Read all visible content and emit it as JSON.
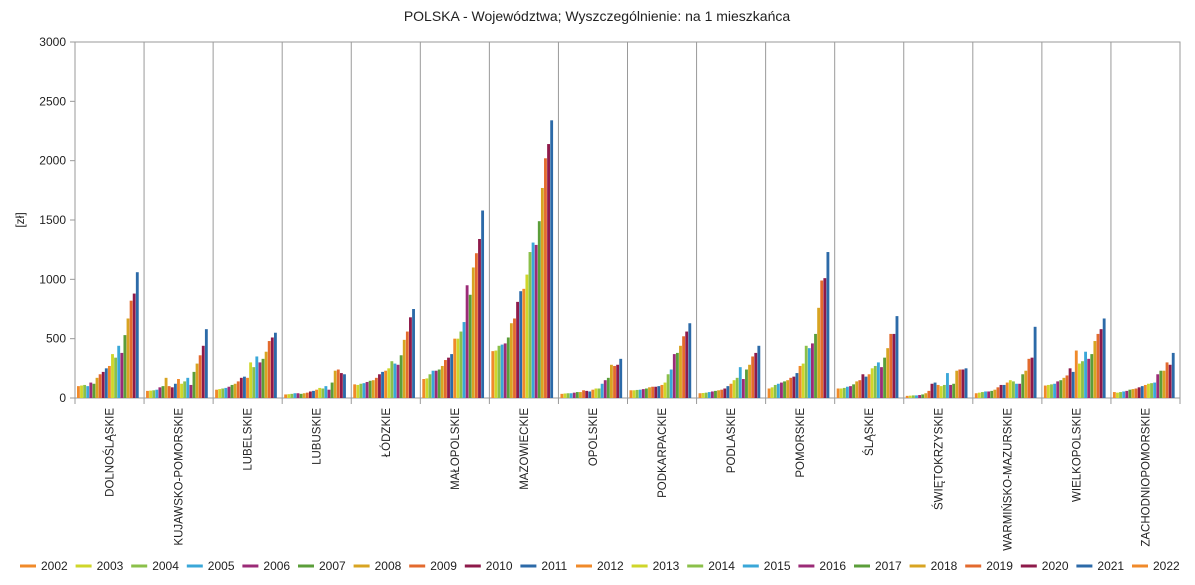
{
  "chart_data": {
    "type": "bar",
    "title": "POLSKA - Województwa; Wyszczególnienie: na 1 mieszkańca",
    "xlabel": "",
    "ylabel": "[zł]",
    "ylim": [
      0,
      3000
    ],
    "yticks": [
      0,
      500,
      1000,
      1500,
      2000,
      2500,
      3000
    ],
    "grid": "vertical category separators",
    "legend_position": "bottom",
    "categories": [
      "DOLNOŚLĄSKIE",
      "KUJAWSKO-POMORSKIE",
      "LUBELSKIE",
      "LUBUSKIE",
      "ŁÓDZKIE",
      "MAŁOPOLSKIE",
      "MAZOWIECKIE",
      "OPOLSKIE",
      "PODKARPACKIE",
      "PODLASKIE",
      "POMORSKIE",
      "ŚLĄSKIE",
      "ŚWIĘTOKRZYSKIE",
      "WARMIŃSKO-MAZURSKIE",
      "WIELKOPOLSKIE",
      "ZACHODNIOPOMORSKIE"
    ],
    "series": [
      {
        "name": "2002",
        "color": "#f08a2a",
        "values": [
          100,
          60,
          70,
          30,
          115,
          160,
          395,
          35,
          65,
          40,
          80,
          80,
          18,
          40,
          105,
          50
        ]
      },
      {
        "name": "2003",
        "color": "#cfd62a",
        "values": [
          105,
          62,
          75,
          32,
          110,
          165,
          400,
          38,
          65,
          42,
          90,
          80,
          20,
          45,
          110,
          45
        ]
      },
      {
        "name": "2004",
        "color": "#8bc04a",
        "values": [
          110,
          65,
          80,
          35,
          120,
          200,
          440,
          40,
          68,
          45,
          110,
          85,
          22,
          50,
          115,
          50
        ]
      },
      {
        "name": "2005",
        "color": "#3aa7d8",
        "values": [
          100,
          70,
          85,
          40,
          125,
          230,
          450,
          40,
          70,
          50,
          120,
          95,
          22,
          55,
          120,
          55
        ]
      },
      {
        "name": "2006",
        "color": "#9b2b77",
        "values": [
          130,
          90,
          95,
          40,
          135,
          230,
          460,
          45,
          75,
          55,
          130,
          100,
          25,
          55,
          140,
          60
        ]
      },
      {
        "name": "2007",
        "color": "#5b9e3a",
        "values": [
          120,
          100,
          110,
          35,
          145,
          240,
          510,
          50,
          80,
          60,
          140,
          115,
          30,
          60,
          150,
          70
        ]
      },
      {
        "name": "2008",
        "color": "#d8a422",
        "values": [
          170,
          170,
          120,
          40,
          150,
          270,
          630,
          50,
          90,
          65,
          150,
          140,
          40,
          70,
          170,
          75
        ]
      },
      {
        "name": "2009",
        "color": "#e36a2e",
        "values": [
          200,
          100,
          140,
          45,
          170,
          320,
          670,
          65,
          95,
          70,
          170,
          150,
          60,
          90,
          190,
          80
        ]
      },
      {
        "name": "2010",
        "color": "#8e1a4a",
        "values": [
          220,
          90,
          170,
          55,
          200,
          340,
          810,
          60,
          95,
          80,
          180,
          200,
          120,
          110,
          250,
          90
        ]
      },
      {
        "name": "2011",
        "color": "#2c6aa8",
        "values": [
          250,
          120,
          180,
          60,
          220,
          370,
          900,
          55,
          100,
          100,
          210,
          180,
          130,
          110,
          220,
          100
        ]
      },
      {
        "name": "2012",
        "color": "#f08a2a",
        "values": [
          270,
          160,
          170,
          70,
          230,
          500,
          920,
          70,
          110,
          120,
          270,
          200,
          110,
          130,
          400,
          110
        ]
      },
      {
        "name": "2013",
        "color": "#cfd62a",
        "values": [
          370,
          120,
          300,
          85,
          250,
          500,
          1040,
          80,
          130,
          150,
          290,
          250,
          100,
          150,
          290,
          120
        ]
      },
      {
        "name": "2014",
        "color": "#8bc04a",
        "values": [
          340,
          140,
          260,
          80,
          310,
          560,
          1230,
          80,
          200,
          170,
          440,
          270,
          110,
          140,
          310,
          125
        ]
      },
      {
        "name": "2015",
        "color": "#3aa7d8",
        "values": [
          440,
          170,
          350,
          100,
          290,
          640,
          1310,
          120,
          240,
          260,
          420,
          300,
          210,
          120,
          390,
          130
        ]
      },
      {
        "name": "2016",
        "color": "#9b2b77",
        "values": [
          380,
          110,
          300,
          70,
          280,
          950,
          1290,
          150,
          370,
          160,
          460,
          260,
          110,
          120,
          330,
          200
        ]
      },
      {
        "name": "2017",
        "color": "#5b9e3a",
        "values": [
          530,
          220,
          330,
          130,
          360,
          870,
          1490,
          170,
          380,
          240,
          540,
          340,
          120,
          200,
          370,
          230
        ]
      },
      {
        "name": "2018",
        "color": "#d8a422",
        "values": [
          670,
          290,
          390,
          230,
          490,
          1100,
          1770,
          280,
          440,
          280,
          760,
          420,
          230,
          230,
          480,
          230
        ]
      },
      {
        "name": "2019",
        "color": "#e36a2e",
        "values": [
          820,
          360,
          480,
          240,
          560,
          1220,
          2020,
          270,
          520,
          350,
          990,
          540,
          240,
          330,
          540,
          300
        ]
      },
      {
        "name": "2020",
        "color": "#8e1a4a",
        "values": [
          880,
          440,
          510,
          210,
          680,
          1340,
          2140,
          280,
          560,
          380,
          1010,
          540,
          240,
          340,
          580,
          280
        ]
      },
      {
        "name": "2021",
        "color": "#2c6aa8",
        "values": [
          1060,
          580,
          550,
          200,
          750,
          1580,
          2340,
          330,
          630,
          440,
          1230,
          690,
          250,
          600,
          670,
          380
        ]
      },
      {
        "name": "2022",
        "color": "#f08a2a",
        "values": [
          null,
          null,
          null,
          null,
          null,
          null,
          null,
          null,
          null,
          null,
          null,
          null,
          null,
          null,
          null,
          null
        ]
      }
    ]
  }
}
